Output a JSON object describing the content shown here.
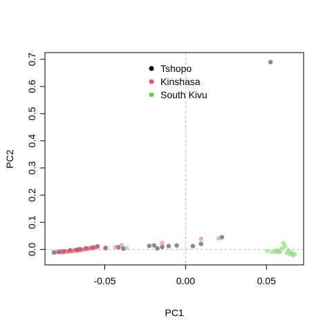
{
  "chart_data": {
    "type": "scatter",
    "xlabel": "PC1",
    "ylabel": "PC2",
    "xlim": [
      -0.087,
      0.073
    ],
    "ylim": [
      -0.057,
      0.725
    ],
    "xticks": [
      -0.05,
      0.0,
      0.05
    ],
    "xtick_labels": [
      "-0.05",
      "0.00",
      "0.05"
    ],
    "yticks": [
      0.0,
      0.1,
      0.2,
      0.3,
      0.4,
      0.5,
      0.6,
      0.7
    ],
    "ytick_labels": [
      "0.0",
      "0.1",
      "0.2",
      "0.3",
      "0.4",
      "0.5",
      "0.6",
      "0.7"
    ],
    "reference_lines": {
      "x": 0,
      "y": 0,
      "style": "dashed",
      "color": "#bebebe"
    },
    "grid": false,
    "legend": {
      "placement": "top-center",
      "framed": false
    },
    "series": [
      {
        "name": "Tshopo",
        "color": "#000000",
        "points": [
          [
            -0.0815,
            -0.011
          ],
          [
            -0.0785,
            -0.009
          ],
          [
            -0.0755,
            -0.007
          ],
          [
            -0.0715,
            -0.003
          ],
          [
            -0.0675,
            -0.0015
          ],
          [
            -0.0655,
            0.001
          ],
          [
            -0.0615,
            0.004
          ],
          [
            -0.0575,
            0.0065
          ],
          [
            -0.0545,
            0.011
          ],
          [
            -0.0495,
            0.006
          ],
          [
            -0.0415,
            0.008
          ],
          [
            -0.0385,
            0.003
          ],
          [
            -0.0225,
            0.013
          ],
          [
            -0.0195,
            0.015
          ],
          [
            -0.0175,
            0.004
          ],
          [
            -0.0145,
            0.0095
          ],
          [
            -0.0105,
            0.0125
          ],
          [
            -0.0055,
            0.0145
          ],
          [
            0.0045,
            0.0125
          ],
          [
            0.0095,
            0.0205
          ],
          [
            0.0225,
            0.045
          ],
          [
            0.0525,
            0.69
          ]
        ]
      },
      {
        "name": "Kinshasa",
        "color": "#df536b",
        "points": [
          [
            -0.0805,
            -0.011
          ],
          [
            -0.0785,
            -0.009
          ],
          [
            -0.0775,
            -0.0075
          ],
          [
            -0.0765,
            -0.011
          ],
          [
            -0.0755,
            -0.0085
          ],
          [
            -0.0745,
            -0.006
          ],
          [
            -0.0735,
            -0.0095
          ],
          [
            -0.0725,
            -0.007
          ],
          [
            -0.0715,
            -0.004
          ],
          [
            -0.0705,
            -0.0075
          ],
          [
            -0.0695,
            -0.005
          ],
          [
            -0.0685,
            -0.002
          ],
          [
            -0.0675,
            -0.006
          ],
          [
            -0.0665,
            -0.001
          ],
          [
            -0.0655,
            -0.0035
          ],
          [
            -0.0645,
            0.0005
          ],
          [
            -0.0635,
            -0.002
          ],
          [
            -0.0625,
            0.002
          ],
          [
            -0.0615,
            0.0045
          ],
          [
            -0.0605,
            0.0005
          ],
          [
            -0.0595,
            0.0055
          ],
          [
            -0.0585,
            0.0035
          ],
          [
            -0.0575,
            0.0085
          ],
          [
            -0.0565,
            0.0065
          ],
          [
            -0.0555,
            0.0075
          ],
          [
            -0.0545,
            0.0115
          ],
          [
            -0.0495,
            0.0035
          ],
          [
            -0.0435,
            0.0085
          ],
          [
            -0.0395,
            0.0155
          ],
          [
            -0.0145,
            0.024
          ],
          [
            0.0095,
            0.039
          ],
          [
            0.0205,
            0.041
          ]
        ]
      },
      {
        "name": "South Kivu",
        "color": "#61d04f",
        "points": [
          [
            -0.0365,
            0.0055
          ],
          [
            0.0505,
            -0.006
          ],
          [
            0.0535,
            -0.009
          ],
          [
            0.0555,
            -0.008
          ],
          [
            0.0565,
            -0.0035
          ],
          [
            0.0575,
            -0.0115
          ],
          [
            0.0585,
            -0.007
          ],
          [
            0.0595,
            0.0055
          ],
          [
            0.0605,
            0.024
          ],
          [
            0.0615,
            0.0115
          ],
          [
            0.0625,
            -0.0135
          ],
          [
            0.0635,
            -0.003
          ],
          [
            0.0645,
            -0.018
          ],
          [
            0.0655,
            -0.0105
          ],
          [
            0.0665,
            -0.022
          ],
          [
            0.0675,
            -0.016
          ]
        ]
      }
    ]
  }
}
